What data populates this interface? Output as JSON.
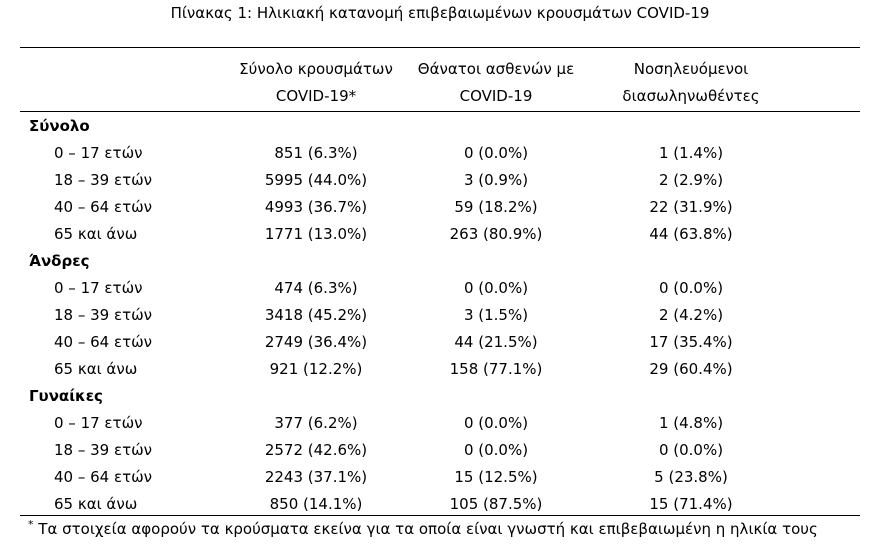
{
  "caption": "Πίνακας 1: Ηλικιακή κατανομή επιβεβαιωμένων κρουσμάτων COVID-19",
  "columns": [
    {
      "line1": "Σύνολο κρουσμάτων",
      "line2": "COVID-19*"
    },
    {
      "line1": "Θάνατοι ασθενών με",
      "line2": "COVID-19"
    },
    {
      "line1": "Νοσηλευόμενοι",
      "line2": "διασωληνωθέντες"
    }
  ],
  "groups": [
    {
      "label": "Σύνολο",
      "rows": [
        {
          "age": "0 – 17 ετών",
          "cases": "851 (6.3%)",
          "deaths": "0 (0.0%)",
          "intubated": "1 (1.4%)"
        },
        {
          "age": "18 – 39 ετών",
          "cases": "5995 (44.0%)",
          "deaths": "3 (0.9%)",
          "intubated": "2 (2.9%)"
        },
        {
          "age": "40 – 64 ετών",
          "cases": "4993 (36.7%)",
          "deaths": "59 (18.2%)",
          "intubated": "22 (31.9%)"
        },
        {
          "age": "65 και άνω",
          "cases": "1771 (13.0%)",
          "deaths": "263 (80.9%)",
          "intubated": "44 (63.8%)"
        }
      ]
    },
    {
      "label": "Άνδρες",
      "rows": [
        {
          "age": "0 – 17 ετών",
          "cases": "474 (6.3%)",
          "deaths": "0 (0.0%)",
          "intubated": "0 (0.0%)"
        },
        {
          "age": "18 – 39 ετών",
          "cases": "3418 (45.2%)",
          "deaths": "3 (1.5%)",
          "intubated": "2 (4.2%)"
        },
        {
          "age": "40 – 64 ετών",
          "cases": "2749 (36.4%)",
          "deaths": "44 (21.5%)",
          "intubated": "17 (35.4%)"
        },
        {
          "age": "65 και άνω",
          "cases": "921 (12.2%)",
          "deaths": "158 (77.1%)",
          "intubated": "29 (60.4%)"
        }
      ]
    },
    {
      "label": "Γυναίκες",
      "rows": [
        {
          "age": "0 – 17 ετών",
          "cases": "377 (6.2%)",
          "deaths": "0 (0.0%)",
          "intubated": "1 (4.8%)"
        },
        {
          "age": "18 – 39 ετών",
          "cases": "2572 (42.6%)",
          "deaths": "0 (0.0%)",
          "intubated": "0 (0.0%)"
        },
        {
          "age": "40 – 64 ετών",
          "cases": "2243 (37.1%)",
          "deaths": "15 (12.5%)",
          "intubated": "5 (23.8%)"
        },
        {
          "age": "65 και άνω",
          "cases": "850 (14.1%)",
          "deaths": "105 (87.5%)",
          "intubated": "15 (71.4%)"
        }
      ]
    }
  ],
  "footnote": {
    "marker": "*",
    "text": "Τα στοιχεία αφορούν τα κρούσματα εκείνα για τα οποία είναι γνωστή και επιβεβαιωμένη η ηλικία τους"
  }
}
